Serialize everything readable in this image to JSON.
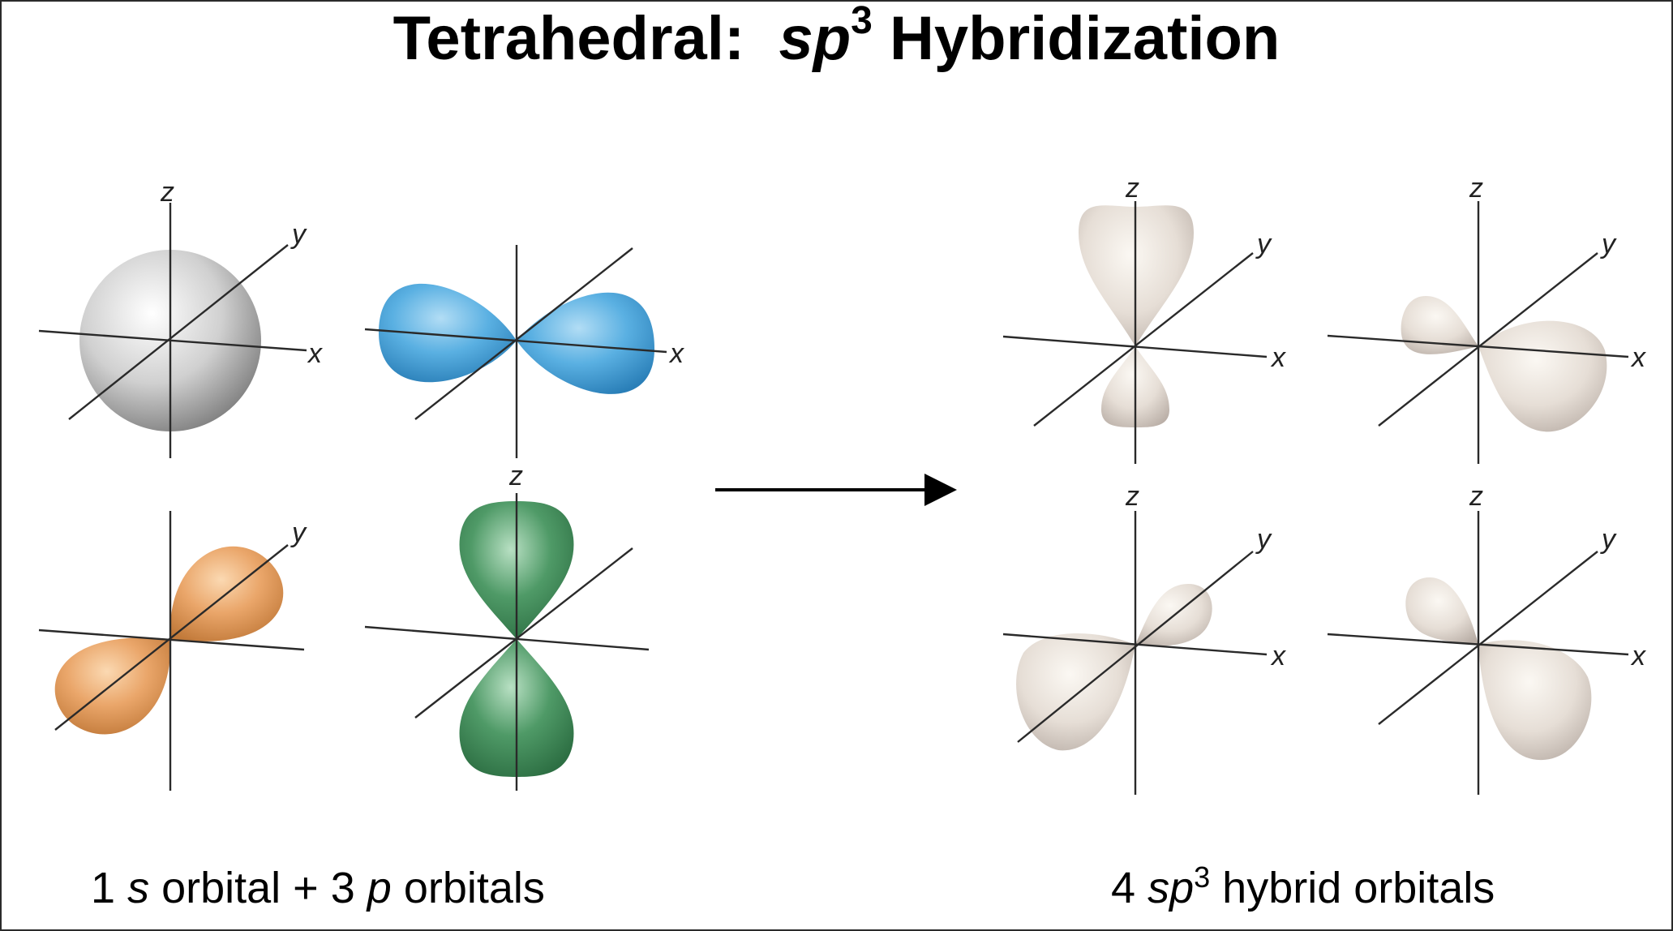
{
  "title": {
    "prefix": "Tetrahedral:",
    "sp_italic": "sp",
    "superscript": "3",
    "suffix": "Hybridization"
  },
  "caption_left": {
    "part1": "1",
    "s_italic": "s",
    "part2": "orbital + 3",
    "p_italic": "p",
    "part3": "orbitals"
  },
  "caption_right": {
    "part1": "4",
    "sp_italic": "sp",
    "superscript": "3",
    "part2": "hybrid orbitals"
  },
  "axis_labels": {
    "x": "x",
    "y": "y",
    "z": "z"
  },
  "colors": {
    "s_orbital": "#a9a9a9",
    "px_orbital": "#5aafe0",
    "py_orbital": "#eaa66a",
    "pz_orbital": "#4f9a67",
    "hybrid_orbital": "#e6ded6",
    "arrow": "#000000"
  }
}
